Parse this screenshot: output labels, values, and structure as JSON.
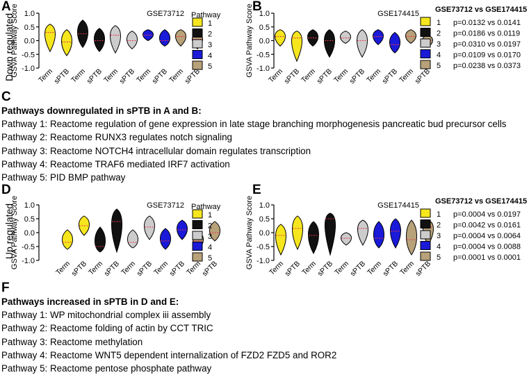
{
  "pathway_colors": [
    "#f5e61e",
    "#111111",
    "#cccccc",
    "#1a1ad8",
    "#b8a27a"
  ],
  "violin_categories": [
    "Term",
    "sPTB"
  ],
  "y_axis": {
    "label": "GSVA Pathway Score",
    "min": -1.0,
    "max": 1.0,
    "ticks": [
      1.0,
      0.5,
      0.0,
      -0.5,
      -1.0
    ],
    "tick_labels": [
      "1.0",
      "0.5",
      "0.0",
      "-0.5",
      "-1.0"
    ]
  },
  "row_labels": {
    "down": "Down regulated",
    "up": "Up regulated"
  },
  "panels": {
    "A": {
      "letter": "A",
      "dataset": "GSE73712",
      "legend_title": "Pathway",
      "legend_items": [
        "1",
        "2",
        "3",
        "4",
        "5"
      ]
    },
    "B": {
      "letter": "B",
      "dataset": "GSE174415",
      "legend_title": "GSE73712 vs GSE174415",
      "legend_items": [
        "1",
        "2",
        "3",
        "4",
        "5"
      ],
      "pvalues": [
        "p=0.0132 vs 0.0141",
        "p=0.0186 vs 0.0119",
        "p=0.0310 vs 0.0197",
        "p=0.0109 vs 0.0170",
        "p=0.0238 vs 0.0373"
      ]
    },
    "C": {
      "letter": "C",
      "header": "Pathways downregulated in sPTB in A and B:",
      "lines": [
        "Pathway 1: Reactome regulation of gene expression in late stage branching morphogenesis pancreatic bud precursor cells",
        "Pathway 2:  Reactome RUNX3 regulates notch signaling",
        "Pathway 3: Reactome NOTCH4 intracellular domain regulates transcription",
        "Pathway 4: Reactome TRAF6 mediated IRF7 activation",
        "Pathway 5: PID BMP pathway"
      ]
    },
    "D": {
      "letter": "D",
      "dataset": "GSE73712",
      "legend_title": "Pathway",
      "legend_items": [
        "1",
        "2",
        "3",
        "4",
        "5"
      ]
    },
    "E": {
      "letter": "E",
      "dataset": "GSE174415",
      "legend_title": "GSE73712 vs GSE174415",
      "legend_items": [
        "1",
        "2",
        "3",
        "4",
        "5"
      ],
      "pvalues": [
        "p=0.0004 vs 0.0197",
        "p=0.0042 vs 0.0161",
        "p=0.0004 vs 0.0064",
        "p=0.0004 vs 0.0088",
        "p=0.0001 vs 0.0001"
      ]
    },
    "F": {
      "letter": "F",
      "header": "Pathways increased in sPTB in D and E:",
      "lines": [
        "Pathway 1: WP mitochondrial complex iii assembly",
        "Pathway 2: Reactome folding of actin by CCT TRIC",
        "Pathway 3: Reactome methylation",
        "Pathway 4: Reactome WNT5 dependent internalization of FZD2 FZD5 and ROR2",
        "Pathway 5: Reactome pentose phosphate pathway"
      ]
    }
  },
  "chart_data": [
    {
      "type": "violin",
      "panel": "A",
      "title": "GSE73712",
      "ylabel": "GSVA Pathway Score",
      "ylim": [
        -1,
        1
      ],
      "categories": [
        "Term",
        "sPTB"
      ],
      "series": [
        {
          "name": "1",
          "term": {
            "min": -0.4,
            "max": 0.6,
            "median": 0.3
          },
          "sptb": {
            "min": -0.55,
            "max": 0.4,
            "median": -0.05
          }
        },
        {
          "name": "2",
          "term": {
            "min": -0.25,
            "max": 0.75,
            "median": 0.25
          },
          "sptb": {
            "min": -0.4,
            "max": 0.45,
            "median": 0.0
          }
        },
        {
          "name": "3",
          "term": {
            "min": -0.45,
            "max": 0.55,
            "median": 0.2
          },
          "sptb": {
            "min": -0.3,
            "max": 0.35,
            "median": 0.0
          }
        },
        {
          "name": "4",
          "term": {
            "min": 0.0,
            "max": 0.4,
            "median": 0.2
          },
          "sptb": {
            "min": -0.2,
            "max": 0.4,
            "median": 0.0
          }
        },
        {
          "name": "5",
          "term": {
            "min": -0.2,
            "max": 0.4,
            "median": 0.15
          },
          "sptb": {
            "min": -0.3,
            "max": 0.3,
            "median": 0.05
          }
        }
      ]
    },
    {
      "type": "violin",
      "panel": "B",
      "title": "GSE174415",
      "ylabel": "GSVA Pathway Score",
      "ylim": [
        -1,
        1
      ],
      "categories": [
        "Term",
        "sPTB"
      ],
      "series": [
        {
          "name": "1",
          "term": {
            "min": -0.2,
            "max": 0.4,
            "median": 0.15
          },
          "sptb": {
            "min": -0.75,
            "max": 0.35,
            "median": 0.1
          }
        },
        {
          "name": "2",
          "term": {
            "min": -0.2,
            "max": 0.4,
            "median": 0.1
          },
          "sptb": {
            "min": -0.6,
            "max": 0.4,
            "median": 0.0
          }
        },
        {
          "name": "3",
          "term": {
            "min": -0.1,
            "max": 0.35,
            "median": 0.1
          },
          "sptb": {
            "min": -0.6,
            "max": 0.4,
            "median": 0.0
          }
        },
        {
          "name": "4",
          "term": {
            "min": -0.15,
            "max": 0.4,
            "median": 0.15
          },
          "sptb": {
            "min": -0.45,
            "max": 0.3,
            "median": -0.15
          }
        },
        {
          "name": "5",
          "term": {
            "min": -0.1,
            "max": 0.4,
            "median": 0.15
          },
          "sptb": {
            "min": -0.25,
            "max": 0.2,
            "median": 0.0
          }
        }
      ]
    },
    {
      "type": "violin",
      "panel": "D",
      "title": "GSE73712",
      "ylabel": "GSVA Pathway Score",
      "ylim": [
        -1,
        1
      ],
      "categories": [
        "Term",
        "sPTB"
      ],
      "series": [
        {
          "name": "1",
          "term": {
            "min": -0.6,
            "max": 0.1,
            "median": -0.35
          },
          "sptb": {
            "min": -0.1,
            "max": 0.6,
            "median": 0.25
          }
        },
        {
          "name": "2",
          "term": {
            "min": -0.7,
            "max": 0.2,
            "median": -0.5
          },
          "sptb": {
            "min": -0.7,
            "max": 0.85,
            "median": 0.4
          }
        },
        {
          "name": "3",
          "term": {
            "min": -0.55,
            "max": 0.1,
            "median": -0.35
          },
          "sptb": {
            "min": -0.25,
            "max": 0.6,
            "median": 0.2
          }
        },
        {
          "name": "4",
          "term": {
            "min": -0.6,
            "max": 0.15,
            "median": -0.3
          },
          "sptb": {
            "min": -0.25,
            "max": 0.45,
            "median": 0.1
          }
        },
        {
          "name": "5",
          "term": {
            "min": -0.6,
            "max": 0.05,
            "median": -0.3
          },
          "sptb": {
            "min": -0.3,
            "max": 0.4,
            "median": 0.0
          }
        }
      ]
    },
    {
      "type": "violin",
      "panel": "E",
      "title": "GSE174415",
      "ylabel": "GSVA Pathway Score",
      "ylim": [
        -1,
        1
      ],
      "categories": [
        "Term",
        "sPTB"
      ],
      "series": [
        {
          "name": "1",
          "term": {
            "min": -0.8,
            "max": 0.3,
            "median": -0.1
          },
          "sptb": {
            "min": -0.6,
            "max": 0.6,
            "median": 0.15
          }
        },
        {
          "name": "2",
          "term": {
            "min": -0.75,
            "max": 0.4,
            "median": -0.1
          },
          "sptb": {
            "min": -0.8,
            "max": 0.7,
            "median": 0.5
          }
        },
        {
          "name": "3",
          "term": {
            "min": -0.45,
            "max": 0.0,
            "median": -0.2
          },
          "sptb": {
            "min": -0.45,
            "max": 0.45,
            "median": 0.15
          }
        },
        {
          "name": "4",
          "term": {
            "min": -0.55,
            "max": 0.4,
            "median": -0.2
          },
          "sptb": {
            "min": -0.55,
            "max": 0.5,
            "median": 0.05
          }
        },
        {
          "name": "5",
          "term": {
            "min": -0.8,
            "max": 0.45,
            "median": -0.25
          },
          "sptb": {
            "min": -0.45,
            "max": 0.45,
            "median": 0.2
          }
        }
      ]
    }
  ]
}
